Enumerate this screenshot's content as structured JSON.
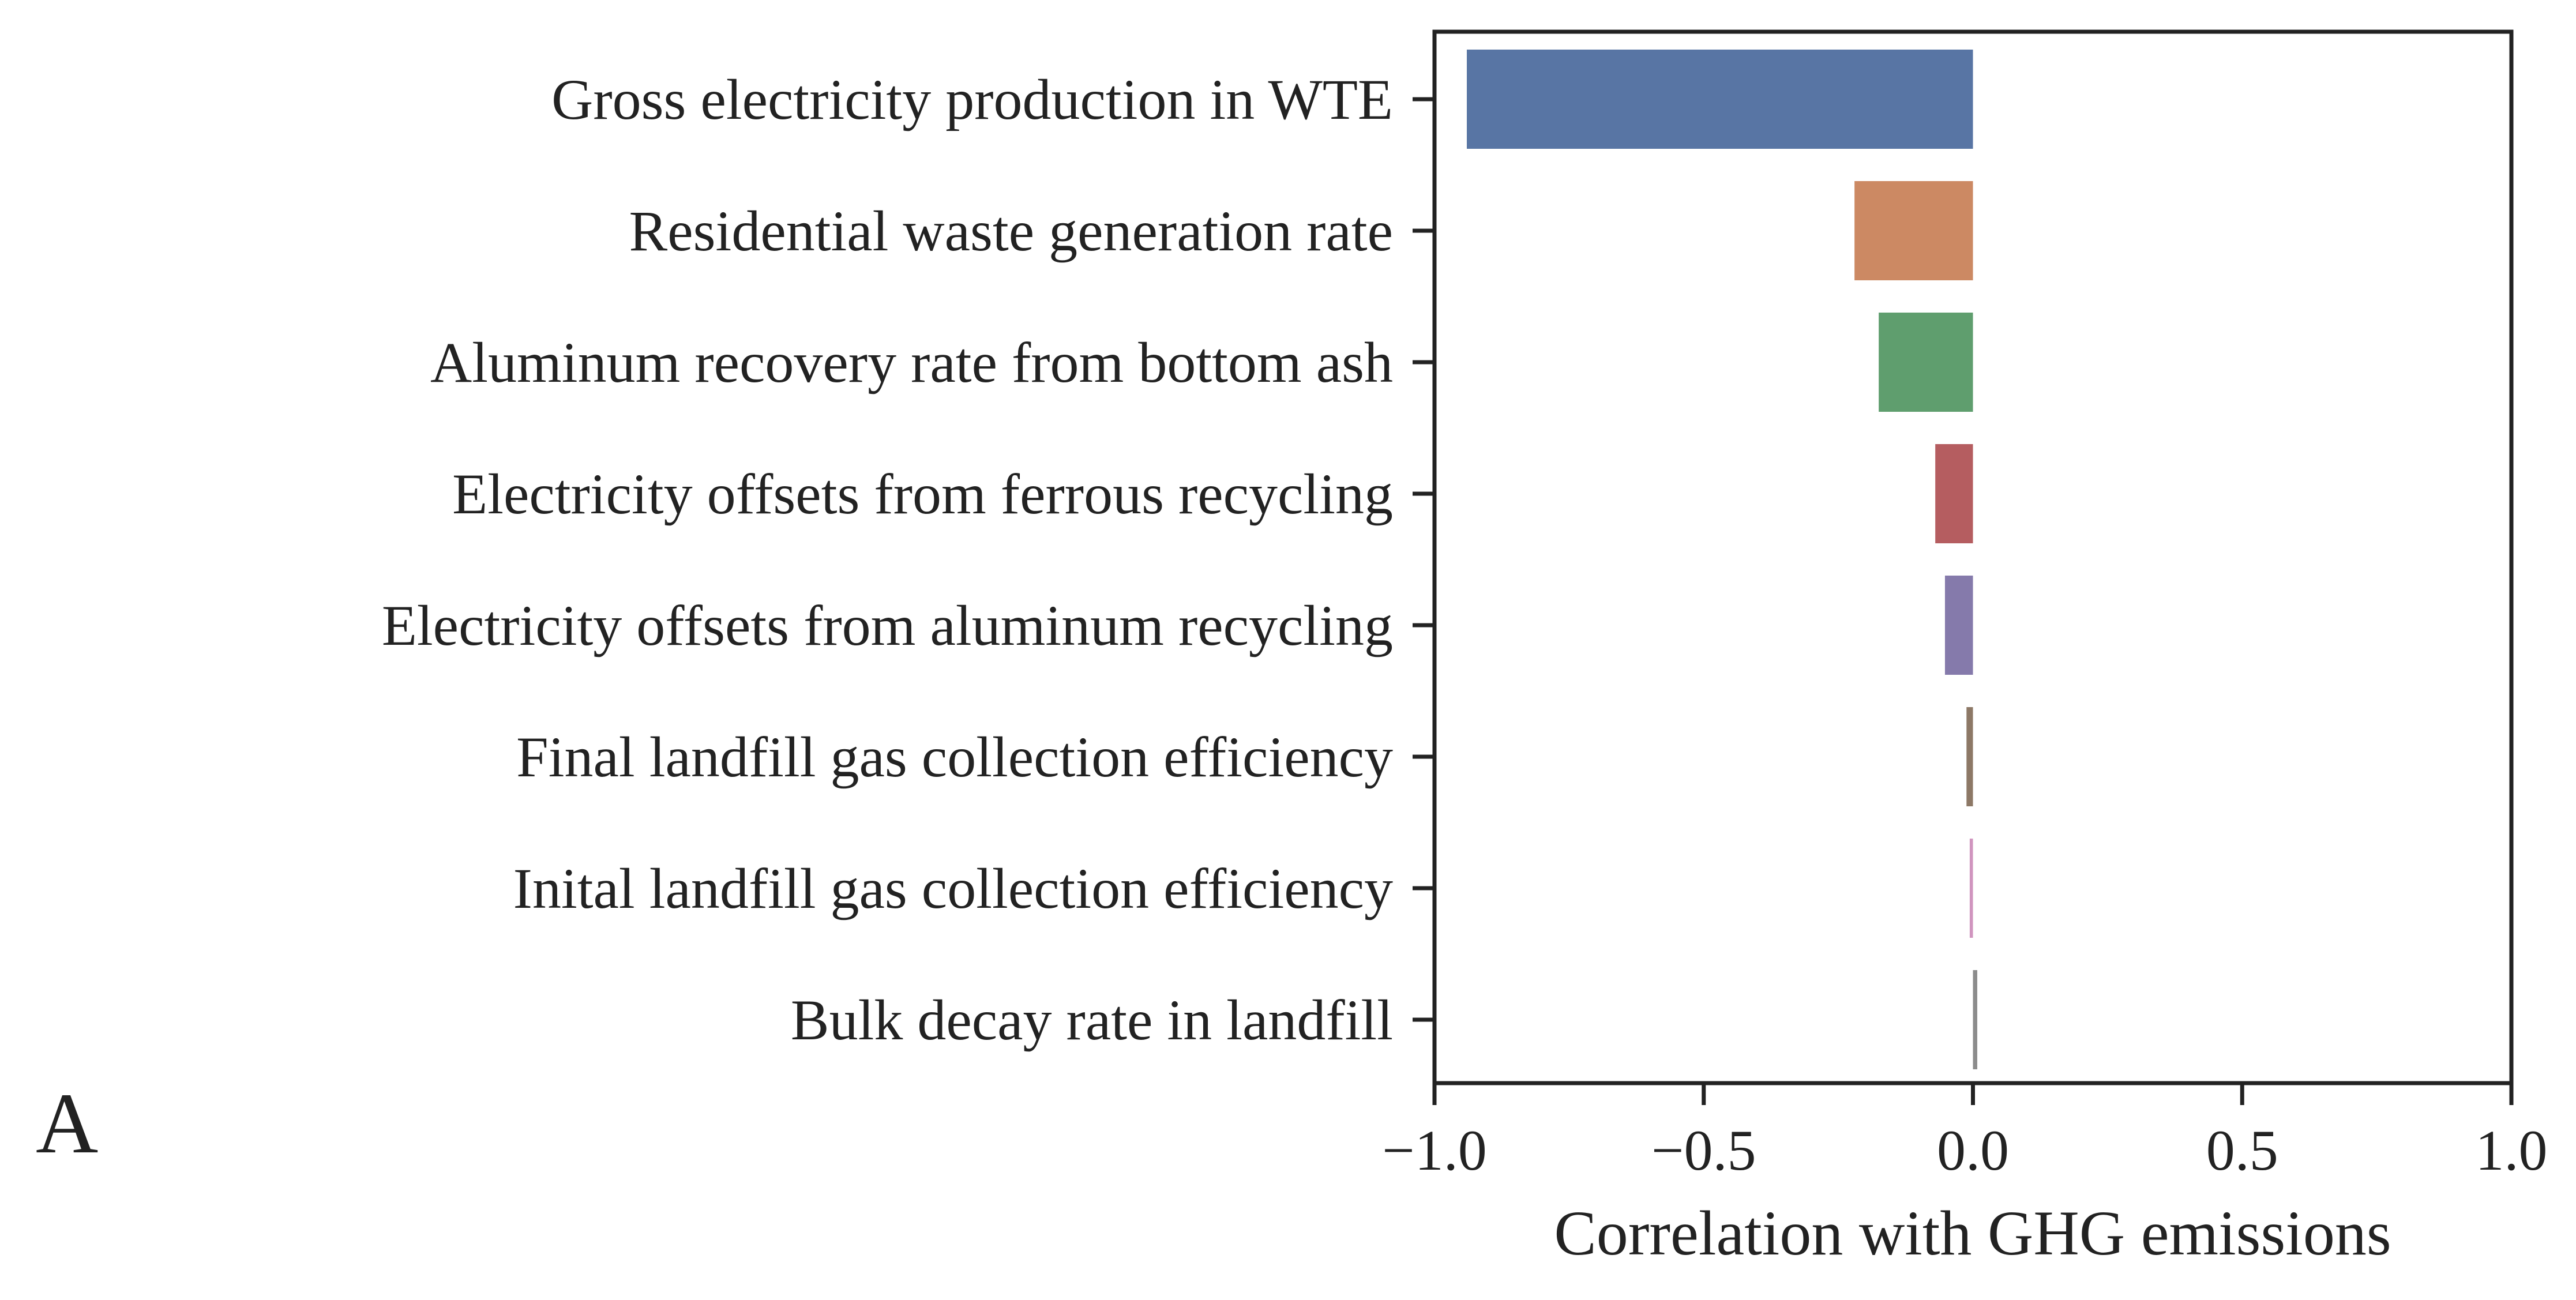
{
  "panel_label": "A",
  "chart_data": {
    "type": "bar",
    "orientation": "horizontal",
    "title": "",
    "xlabel": "Correlation with GHG emissions",
    "ylabel": "",
    "xlim": [
      -1.0,
      1.0
    ],
    "xticks": [
      -1.0,
      -0.5,
      0.0,
      0.5,
      1.0
    ],
    "xtick_labels": [
      "−1.0",
      "−0.5",
      "0.0",
      "0.5",
      "1.0"
    ],
    "grid": false,
    "legend": "none",
    "categories": [
      "Gross electricity production in WTE",
      "Residential waste generation rate",
      "Aluminum recovery rate from bottom ash",
      "Electricity offsets from ferrous recycling",
      "Electricity offsets from aluminum recycling",
      "Final landfill gas collection efficiency",
      "Inital landfill gas collection efficiency",
      "Bulk decay rate in landfill"
    ],
    "values": [
      -0.94,
      -0.22,
      -0.175,
      -0.07,
      -0.052,
      -0.012,
      -0.006,
      0.008
    ],
    "colors": [
      "#5875a4",
      "#cc8963",
      "#5f9e6e",
      "#b55d60",
      "#857aab",
      "#8d7866",
      "#d095bf",
      "#8c8c8c"
    ]
  }
}
